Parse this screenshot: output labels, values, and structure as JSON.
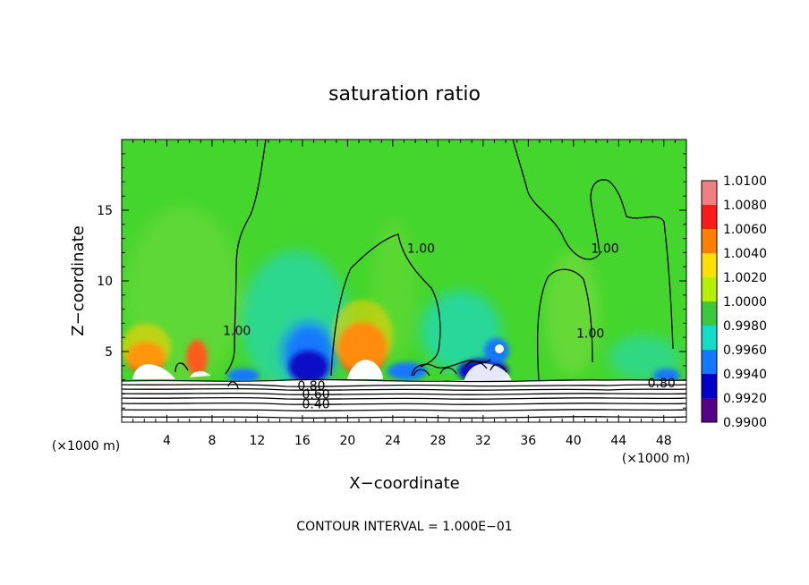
{
  "chart_data": {
    "type": "heatmap",
    "title": "saturation ratio",
    "xlabel": "X−coordinate",
    "ylabel": "Z−coordinate",
    "x_unit_left": "(×1000 m)",
    "x_unit_right": "(×1000 m)",
    "footer": "CONTOUR INTERVAL = 1.000E−01",
    "xlim": [
      0,
      50
    ],
    "ylim": [
      0,
      20
    ],
    "x_ticks": [
      "4",
      "8",
      "12",
      "16",
      "20",
      "24",
      "28",
      "32",
      "36",
      "40",
      "44",
      "48"
    ],
    "y_ticks": [
      "5",
      "10",
      "15"
    ],
    "colorbar": {
      "labels": [
        "1.0100",
        "1.0080",
        "1.0060",
        "1.0040",
        "1.0020",
        "1.0000",
        "0.9980",
        "0.9960",
        "0.9940",
        "0.9920",
        "0.9900"
      ],
      "colors": [
        "#f08080",
        "#ff1a1a",
        "#ff7f00",
        "#ffdf00",
        "#b4f000",
        "#3cc83c",
        "#14dcc8",
        "#1478ff",
        "#0000c8",
        "#550088"
      ]
    },
    "contour_labels": [
      {
        "text": "1.00",
        "x": 10.2,
        "z": 6.5
      },
      {
        "text": "1.00",
        "x": 26.5,
        "z": 12.3
      },
      {
        "text": "1.00",
        "x": 42.8,
        "z": 12.3
      },
      {
        "text": "1.00",
        "x": 41.5,
        "z": 6.3
      },
      {
        "text": "0.80",
        "x": 16.8,
        "z": 2.6
      },
      {
        "text": "0.60",
        "x": 17.2,
        "z": 2.0
      },
      {
        "text": "0.40",
        "x": 17.2,
        "z": 1.3
      },
      {
        "text": "0.80",
        "x": 47.8,
        "z": 2.8
      }
    ]
  }
}
